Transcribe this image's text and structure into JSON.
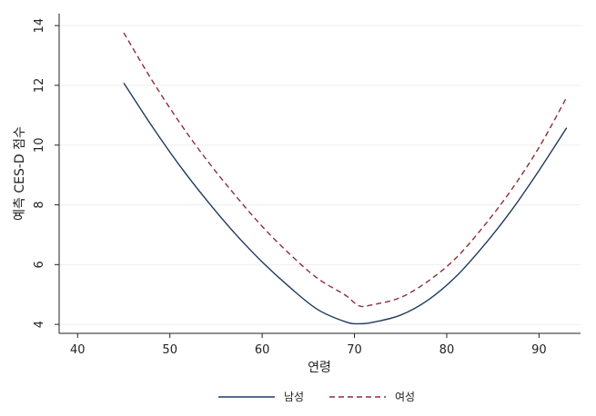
{
  "chart_data": {
    "type": "line",
    "xlabel": "연령",
    "ylabel": "예측 CES-D 점수",
    "xlim": [
      38,
      94.5
    ],
    "ylim": [
      3.7,
      14.4
    ],
    "xticks": [
      40,
      50,
      60,
      70,
      80,
      90
    ],
    "yticks": [
      4,
      6,
      8,
      10,
      12,
      14
    ],
    "grid": "horizontal",
    "legend_position": "bottom",
    "x": [
      45,
      48,
      51,
      54,
      57,
      60,
      63,
      66,
      69,
      70.5,
      72,
      75,
      78,
      81,
      84,
      87,
      90,
      93
    ],
    "series": [
      {
        "name": "남성",
        "color": "#1f3a5f",
        "dash": "solid",
        "values": [
          12.08,
          10.66,
          9.34,
          8.15,
          7.06,
          6.09,
          5.24,
          4.5,
          4.09,
          4.02,
          4.07,
          4.31,
          4.82,
          5.6,
          6.63,
          7.81,
          9.15,
          10.58
        ]
      },
      {
        "name": "여성",
        "color": "#8b2e3c",
        "dash": "dashed",
        "values": [
          13.76,
          12.2,
          10.78,
          9.5,
          8.35,
          7.28,
          6.35,
          5.54,
          4.98,
          4.62,
          4.66,
          4.9,
          5.45,
          6.22,
          7.28,
          8.5,
          9.92,
          11.6
        ]
      }
    ]
  }
}
